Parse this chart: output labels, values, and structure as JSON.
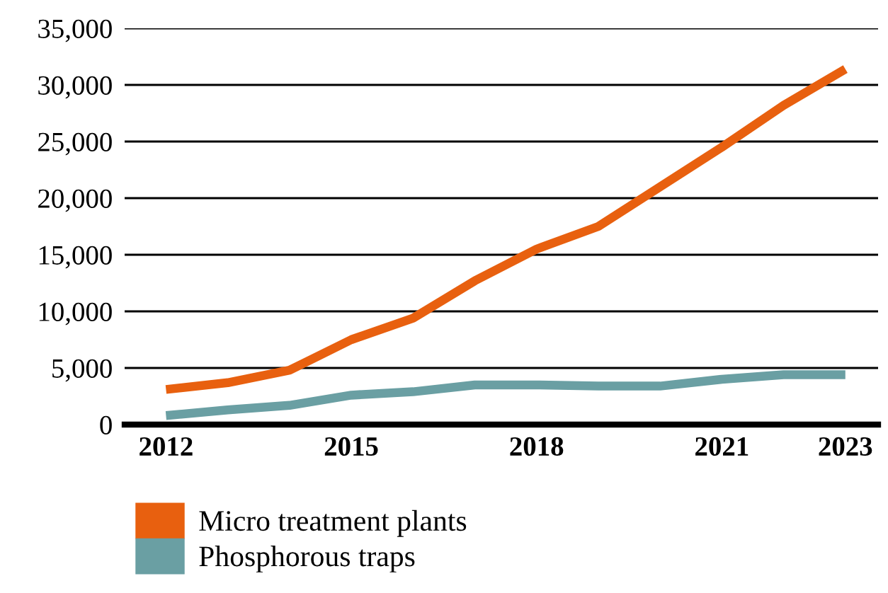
{
  "chart_data": {
    "type": "line",
    "x": [
      2012,
      2013,
      2014,
      2015,
      2016,
      2017,
      2018,
      2019,
      2020,
      2021,
      2022,
      2023
    ],
    "series": [
      {
        "name": "Micro treatment plants",
        "color": "#e8600f",
        "values": [
          3100,
          3700,
          4800,
          7500,
          9400,
          12700,
          15500,
          17500,
          21000,
          24500,
          28200,
          31400
        ]
      },
      {
        "name": "Phosphorous traps",
        "color": "#6a9fa3",
        "values": [
          800,
          1300,
          1700,
          2600,
          2900,
          3500,
          3500,
          3400,
          3400,
          4000,
          4400,
          4400
        ]
      }
    ],
    "xlim": [
      2011.33,
      2023.53
    ],
    "xticks": [
      2012,
      2015,
      2018,
      2021,
      2023
    ],
    "ylim": [
      0,
      35000
    ],
    "yticks": [
      {
        "value": 0,
        "label": "0"
      },
      {
        "value": 5000,
        "label": "5,000"
      },
      {
        "value": 10000,
        "label": "10,000"
      },
      {
        "value": 15000,
        "label": "15,000"
      },
      {
        "value": 20000,
        "label": "20,000"
      },
      {
        "value": 25000,
        "label": "25,000"
      },
      {
        "value": 30000,
        "label": "30,000"
      },
      {
        "value": 35000,
        "label": "35,000"
      }
    ],
    "grid": "y",
    "legend": "bottom",
    "marker": "none",
    "line_style": "solid"
  }
}
